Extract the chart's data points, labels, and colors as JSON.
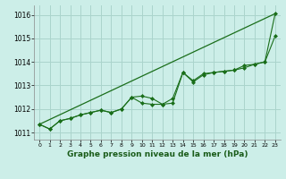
{
  "xlabel": "Graphe pression niveau de la mer (hPa)",
  "bg_color": "#cceee8",
  "grid_color": "#aad4cc",
  "line_color": "#1a6e1a",
  "xlim": [
    -0.5,
    23.5
  ],
  "ylim": [
    1010.7,
    1016.4
  ],
  "yticks": [
    1011,
    1012,
    1013,
    1014,
    1015,
    1016
  ],
  "xticks": [
    0,
    1,
    2,
    3,
    4,
    5,
    6,
    7,
    8,
    9,
    10,
    11,
    12,
    13,
    14,
    15,
    16,
    17,
    18,
    19,
    20,
    21,
    22,
    23
  ],
  "trend_x": [
    0,
    23
  ],
  "trend_y": [
    1011.35,
    1016.05
  ],
  "line1_x": [
    0,
    1,
    2,
    3,
    4,
    5,
    6,
    7,
    8,
    9,
    10,
    11,
    12,
    13,
    14,
    15,
    16,
    17,
    18,
    19,
    20,
    21,
    22,
    23
  ],
  "line1_y": [
    1011.35,
    1011.15,
    1011.5,
    1011.6,
    1011.75,
    1011.85,
    1011.95,
    1011.85,
    1012.0,
    1012.5,
    1012.55,
    1012.45,
    1012.2,
    1012.45,
    1013.55,
    1013.15,
    1013.45,
    1013.55,
    1013.6,
    1013.65,
    1013.75,
    1013.9,
    1014.0,
    1015.1
  ],
  "line2_x": [
    0,
    1,
    2,
    3,
    4,
    5,
    6,
    7,
    8,
    9,
    10,
    11,
    12,
    13,
    14,
    15,
    16,
    17,
    18,
    19,
    20,
    21,
    22,
    23
  ],
  "line2_y": [
    1011.35,
    1011.15,
    1011.5,
    1011.6,
    1011.75,
    1011.85,
    1011.95,
    1011.85,
    1012.0,
    1012.5,
    1012.25,
    1012.2,
    1012.2,
    1012.25,
    1013.55,
    1013.2,
    1013.5,
    1013.55,
    1013.6,
    1013.65,
    1013.85,
    1013.9,
    1014.0,
    1016.05
  ]
}
